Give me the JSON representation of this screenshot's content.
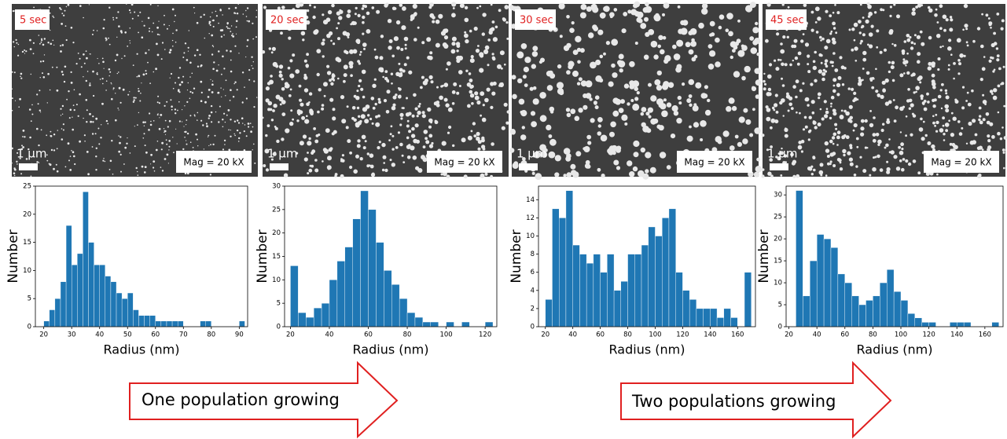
{
  "panels": [
    {
      "time": "5 sec",
      "scale": "1 µm",
      "mag": "Mag = 20 kX"
    },
    {
      "time": "20 sec",
      "scale": "1 µm",
      "mag": "Mag = 20 kX"
    },
    {
      "time": "30 sec",
      "scale": "1 µm",
      "mag": "Mag = 20 kX"
    },
    {
      "time": "45 sec",
      "scale": "1 µm",
      "mag": "Mag = 20 kX"
    }
  ],
  "arrows": [
    "One population growing",
    "Two populations growing"
  ],
  "chart_data": [
    {
      "type": "histogram",
      "x_label": "Radius (nm)",
      "y_label": "Number",
      "color": "#1f77b4",
      "bins": [
        20,
        22,
        24,
        26,
        28,
        30,
        32,
        34,
        36,
        38,
        40,
        42,
        44,
        46,
        48,
        50,
        52,
        54,
        56,
        58,
        60,
        62,
        64,
        66,
        68,
        70,
        72,
        74,
        76,
        78,
        80,
        82,
        84,
        86,
        88,
        90,
        92
      ],
      "values": [
        1,
        3,
        5,
        8,
        18,
        11,
        13,
        24,
        15,
        11,
        11,
        9,
        8,
        6,
        5,
        6,
        3,
        2,
        2,
        2,
        1,
        1,
        1,
        1,
        1,
        0,
        0,
        0,
        1,
        1,
        0,
        0,
        0,
        0,
        0,
        1
      ],
      "xlim": [
        17,
        93
      ],
      "xticks": [
        20,
        30,
        40,
        50,
        60,
        70,
        80,
        90
      ],
      "ylim": [
        0,
        25
      ],
      "yticks": [
        0,
        5,
        10,
        15,
        20,
        25
      ]
    },
    {
      "type": "histogram",
      "x_label": "Radius (nm)",
      "y_label": "Number",
      "color": "#1f77b4",
      "bins": [
        20,
        24,
        28,
        32,
        36,
        40,
        44,
        48,
        52,
        56,
        60,
        64,
        68,
        72,
        76,
        80,
        84,
        88,
        92,
        96,
        100,
        104,
        108,
        112,
        116,
        120,
        124
      ],
      "values": [
        13,
        3,
        2,
        4,
        5,
        10,
        14,
        17,
        23,
        29,
        25,
        18,
        12,
        9,
        6,
        3,
        2,
        1,
        1,
        0,
        1,
        0,
        1,
        0,
        0,
        1
      ],
      "xlim": [
        17,
        126
      ],
      "xticks": [
        20,
        40,
        60,
        80,
        100,
        120
      ],
      "ylim": [
        0,
        30
      ],
      "yticks": [
        0,
        5,
        10,
        15,
        20,
        25,
        30
      ]
    },
    {
      "type": "histogram",
      "x_label": "Radius (nm)",
      "y_label": "Number",
      "color": "#1f77b4",
      "bins": [
        20,
        25,
        30,
        35,
        40,
        45,
        50,
        55,
        60,
        65,
        70,
        75,
        80,
        85,
        90,
        95,
        100,
        105,
        110,
        115,
        120,
        125,
        130,
        135,
        140,
        145,
        150,
        155,
        160,
        165,
        170
      ],
      "values": [
        3,
        13,
        12,
        15,
        9,
        8,
        7,
        8,
        6,
        8,
        4,
        5,
        8,
        8,
        9,
        11,
        10,
        12,
        13,
        6,
        4,
        3,
        2,
        2,
        2,
        1,
        2,
        1,
        0,
        6
      ],
      "xlim": [
        15,
        173
      ],
      "xticks": [
        20,
        40,
        60,
        80,
        100,
        120,
        140,
        160
      ],
      "ylim": [
        0,
        15.5
      ],
      "yticks": [
        0,
        2,
        4,
        6,
        8,
        10,
        12,
        14
      ]
    },
    {
      "type": "histogram",
      "x_label": "Radius (nm)",
      "y_label": "Number",
      "color": "#1f77b4",
      "bins": [
        25,
        30,
        35,
        40,
        45,
        50,
        55,
        60,
        65,
        70,
        75,
        80,
        85,
        90,
        95,
        100,
        105,
        110,
        115,
        120,
        125,
        130,
        135,
        140,
        145,
        150,
        155,
        160,
        165,
        170
      ],
      "values": [
        31,
        7,
        15,
        21,
        20,
        18,
        12,
        10,
        7,
        5,
        6,
        7,
        10,
        13,
        8,
        6,
        3,
        2,
        1,
        1,
        0,
        0,
        1,
        1,
        1,
        0,
        0,
        0,
        1
      ],
      "xlim": [
        18,
        173
      ],
      "xticks": [
        20,
        40,
        60,
        80,
        100,
        120,
        140,
        160
      ],
      "ylim": [
        0,
        32
      ],
      "yticks": [
        0,
        5,
        10,
        15,
        20,
        25,
        30
      ]
    }
  ]
}
